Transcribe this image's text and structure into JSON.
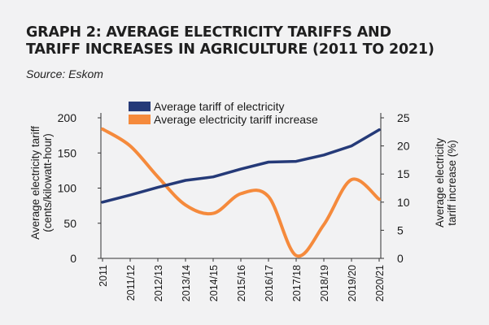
{
  "title_line1": "GRAPH 2: AVERAGE ELECTRICITY TARIFFS AND",
  "title_line2": "TARIFF INCREASES IN AGRICULTURE (2011 TO 2021)",
  "source": "Source: Eskom",
  "chart_data": {
    "type": "line",
    "categories": [
      "2011",
      "2011/12",
      "2012/13",
      "2013/14",
      "2014/15",
      "2015/16",
      "2016/17",
      "2017/18",
      "2018/19",
      "2019/20",
      "2020/21"
    ],
    "series": [
      {
        "name": "Average tariff of electricity",
        "axis": "left",
        "color": "#253a78",
        "values": [
          80,
          90,
          101,
          111,
          116,
          127,
          137,
          138,
          147,
          160,
          183
        ]
      },
      {
        "name": "Average electricity tariff increase",
        "axis": "right",
        "color": "#f58a3c",
        "values": [
          23,
          20,
          14.5,
          9.5,
          8,
          11.5,
          11,
          0.5,
          6,
          14,
          10.5
        ]
      }
    ],
    "ylabel_left_line1": "Average electricity tariff",
    "ylabel_left_line2": "(cents/kilowatt-hour)",
    "ylabel_right_line1": "Average electricity",
    "ylabel_right_line2": "tariff increase (%)",
    "ylim_left": [
      0,
      200
    ],
    "yticks_left": [
      "0",
      "50",
      "100",
      "150",
      "200"
    ],
    "ylim_right": [
      0,
      25
    ],
    "yticks_right": [
      "0",
      "5",
      "10",
      "15",
      "20",
      "25"
    ],
    "grid": false,
    "legend": "top-center"
  }
}
